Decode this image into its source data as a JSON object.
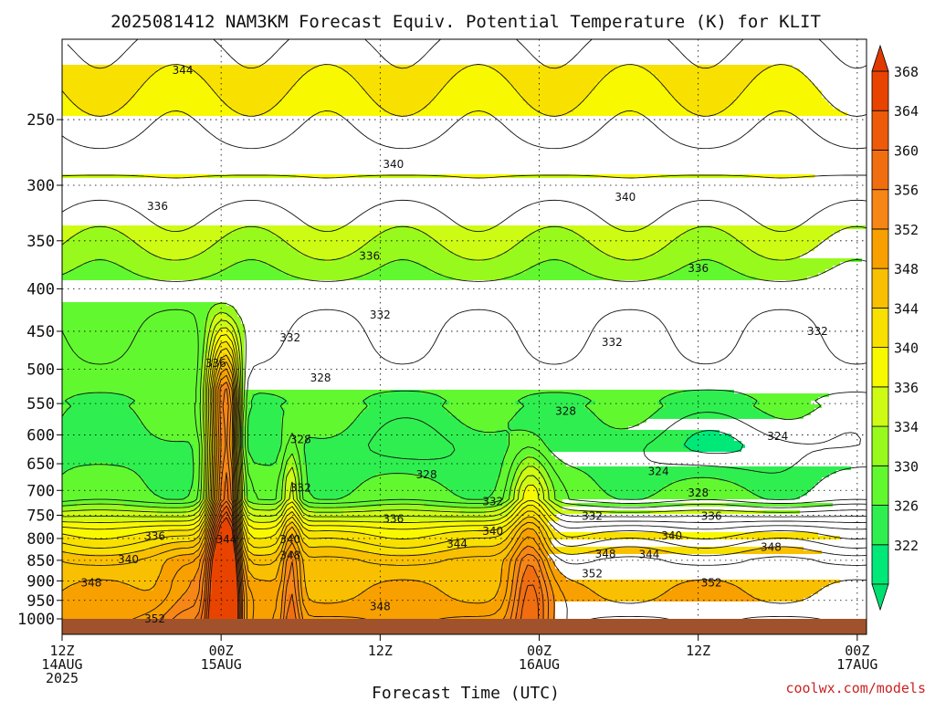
{
  "chart_data": {
    "type": "time-height contour",
    "title": "2025081412 NAM3KM Forecast Equiv. Potential Temperature (K) for KLIT",
    "xlabel": "Forecast Time (UTC)",
    "ylabel": "",
    "credit": "coolwx.com/models",
    "y_scale": "log-pressure",
    "y_range": [
      1000,
      200
    ],
    "y_ticks": [
      1000,
      950,
      900,
      850,
      800,
      750,
      700,
      650,
      600,
      550,
      500,
      450,
      400,
      350,
      300,
      250
    ],
    "x_ticks": [
      {
        "hours": 0,
        "line1": "12Z",
        "line2": "14AUG",
        "line3": "2025"
      },
      {
        "hours": 12,
        "line1": "00Z",
        "line2": "15AUG",
        "line3": ""
      },
      {
        "hours": 24,
        "line1": "12Z",
        "line2": "",
        "line3": ""
      },
      {
        "hours": 36,
        "line1": "00Z",
        "line2": "16AUG",
        "line3": ""
      },
      {
        "hours": 48,
        "line1": "12Z",
        "line2": "",
        "line3": ""
      },
      {
        "hours": 60,
        "line1": "00Z",
        "line2": "17AUG",
        "line3": ""
      }
    ],
    "colorbar": {
      "levels": [
        322,
        326,
        330,
        334,
        336,
        340,
        344,
        348,
        352,
        356,
        360,
        364,
        368
      ],
      "colors": [
        "#00e878",
        "#2fef50",
        "#62f830",
        "#98fa1c",
        "#cdfb14",
        "#f8f800",
        "#f8e000",
        "#f8c000",
        "#f8a000",
        "#f68616",
        "#f06e10",
        "#ec5a0a",
        "#e84400"
      ]
    },
    "terrain_color": "#a0522d",
    "ridges": [
      {
        "hours": 12.0,
        "ptop": 410,
        "amp": 24,
        "w": 1.1
      },
      {
        "hours": 12.8,
        "ptop": 430,
        "amp": 12,
        "w": 0.7
      },
      {
        "hours": 17.3,
        "ptop": 560,
        "amp": 8,
        "w": 0.7
      },
      {
        "hours": 35.3,
        "ptop": 580,
        "amp": 10,
        "w": 1.5
      },
      {
        "hours": 9.5,
        "ptop": 780,
        "amp": 5,
        "w": 2.0
      }
    ],
    "contour_labels": [
      {
        "v": "344",
        "h": 9.1,
        "p": 218
      },
      {
        "v": "340",
        "h": 25.0,
        "p": 283
      },
      {
        "v": "340",
        "h": 42.5,
        "p": 310
      },
      {
        "v": "336",
        "h": 7.2,
        "p": 318
      },
      {
        "v": "336",
        "h": 23.2,
        "p": 365
      },
      {
        "v": "336",
        "h": 48.0,
        "p": 378
      },
      {
        "v": "332",
        "h": 24.0,
        "p": 430
      },
      {
        "v": "332",
        "h": 17.2,
        "p": 458
      },
      {
        "v": "332",
        "h": 41.5,
        "p": 464
      },
      {
        "v": "332",
        "h": 57.0,
        "p": 450
      },
      {
        "v": "336",
        "h": 11.6,
        "p": 492
      },
      {
        "v": "328",
        "h": 19.5,
        "p": 512
      },
      {
        "v": "328",
        "h": 38.0,
        "p": 562
      },
      {
        "v": "324",
        "h": 54.0,
        "p": 602
      },
      {
        "v": "328",
        "h": 18.0,
        "p": 608
      },
      {
        "v": "328",
        "h": 27.5,
        "p": 670
      },
      {
        "v": "324",
        "h": 45.0,
        "p": 664
      },
      {
        "v": "332",
        "h": 18.0,
        "p": 695
      },
      {
        "v": "328",
        "h": 48.0,
        "p": 705
      },
      {
        "v": "332",
        "h": 32.5,
        "p": 722
      },
      {
        "v": "336",
        "h": 25.0,
        "p": 758
      },
      {
        "v": "332",
        "h": 40.0,
        "p": 752
      },
      {
        "v": "336",
        "h": 49.0,
        "p": 752
      },
      {
        "v": "340",
        "h": 32.5,
        "p": 784
      },
      {
        "v": "340",
        "h": 46.0,
        "p": 794
      },
      {
        "v": "336",
        "h": 7.0,
        "p": 795
      },
      {
        "v": "344",
        "h": 12.4,
        "p": 802
      },
      {
        "v": "340",
        "h": 17.2,
        "p": 802
      },
      {
        "v": "344",
        "h": 29.8,
        "p": 812
      },
      {
        "v": "348",
        "h": 17.2,
        "p": 838
      },
      {
        "v": "340",
        "h": 5.0,
        "p": 848
      },
      {
        "v": "348",
        "h": 41.0,
        "p": 835
      },
      {
        "v": "344",
        "h": 44.3,
        "p": 836
      },
      {
        "v": "348",
        "h": 53.5,
        "p": 820
      },
      {
        "v": "352",
        "h": 40.0,
        "p": 882
      },
      {
        "v": "348",
        "h": 2.2,
        "p": 905
      },
      {
        "v": "352",
        "h": 49.0,
        "p": 905
      },
      {
        "v": "348",
        "h": 24.0,
        "p": 966
      },
      {
        "v": "352",
        "h": 7.0,
        "p": 1000
      }
    ]
  }
}
